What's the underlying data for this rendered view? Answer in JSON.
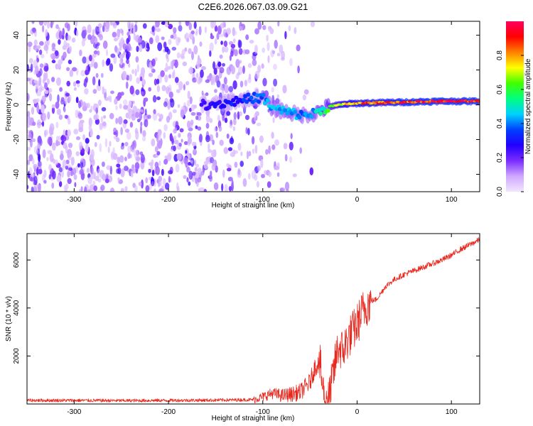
{
  "title": "C2E6.2026.067.03.09.G21",
  "chart_data": [
    {
      "type": "heatmap",
      "title": "",
      "xlabel": "Height of straight line (km)",
      "ylabel": "Frequency (Hz)",
      "xlim": [
        -350,
        130
      ],
      "ylim": [
        -50,
        48
      ],
      "xticks": [
        -300,
        -200,
        -100,
        0,
        100
      ],
      "yticks": [
        -40,
        -20,
        0,
        20,
        40
      ],
      "colorbar": {
        "label": "Normalized spectral amplitude",
        "range": [
          0,
          1
        ],
        "ticks": [
          0.0,
          0.2,
          0.4,
          0.6,
          0.8
        ],
        "colormap": [
          "#f2e6ff",
          "#cfa8ff",
          "#7a2cff",
          "#2200ff",
          "#0040ff",
          "#00d0ff",
          "#00ff80",
          "#40ff00",
          "#ffff00",
          "#ff8000",
          "#ff0000",
          "#ff0060"
        ]
      },
      "ridge": {
        "description_points": [
          {
            "x": -165,
            "f": 0,
            "amp": 0.25
          },
          {
            "x": -140,
            "f": 1,
            "amp": 0.3
          },
          {
            "x": -110,
            "f": 4,
            "amp": 0.35
          },
          {
            "x": -100,
            "f": 4,
            "amp": 0.4
          },
          {
            "x": -90,
            "f": -2,
            "amp": 0.45
          },
          {
            "x": -75,
            "f": -4,
            "amp": 0.45
          },
          {
            "x": -60,
            "f": -6,
            "amp": 0.4
          },
          {
            "x": -45,
            "f": -5,
            "amp": 0.45
          },
          {
            "x": -30,
            "f": -1,
            "amp": 0.6
          },
          {
            "x": -10,
            "f": 0.5,
            "amp": 0.8
          },
          {
            "x": 10,
            "f": 1,
            "amp": 0.85
          },
          {
            "x": 50,
            "f": 1.5,
            "amp": 0.9
          },
          {
            "x": 90,
            "f": 2,
            "amp": 0.95
          },
          {
            "x": 130,
            "f": 2,
            "amp": 0.95
          }
        ],
        "noise_region": [
          -350,
          -110
        ]
      }
    },
    {
      "type": "line",
      "title": "",
      "xlabel": "Height of straight line (km)",
      "ylabel": "SNR (10 * v/v)",
      "xlim": [
        -350,
        130
      ],
      "ylim": [
        0,
        7100
      ],
      "xticks": [
        -300,
        -200,
        -100,
        0,
        100
      ],
      "yticks": [
        2000,
        4000,
        6000
      ],
      "color": "#e8281e",
      "series": [
        {
          "x": [
            -350,
            -300,
            -250,
            -200,
            -150,
            -110,
            -100,
            -90,
            -80,
            -70,
            -60,
            -55,
            -50,
            -45,
            -40,
            -35,
            -30,
            -25,
            -20,
            -15,
            -10,
            -5,
            0,
            5,
            10,
            15,
            20,
            25,
            30,
            40,
            50,
            60,
            70,
            80,
            90,
            100,
            110,
            120,
            130
          ],
          "values": [
            150,
            150,
            140,
            150,
            160,
            180,
            300,
            450,
            350,
            400,
            500,
            700,
            900,
            1500,
            1800,
            300,
            150,
            1300,
            2400,
            2200,
            2700,
            3000,
            3300,
            3800,
            4100,
            4300,
            4350,
            4600,
            4900,
            5200,
            5400,
            5550,
            5700,
            5850,
            6000,
            6200,
            6450,
            6650,
            6850
          ]
        }
      ]
    }
  ]
}
